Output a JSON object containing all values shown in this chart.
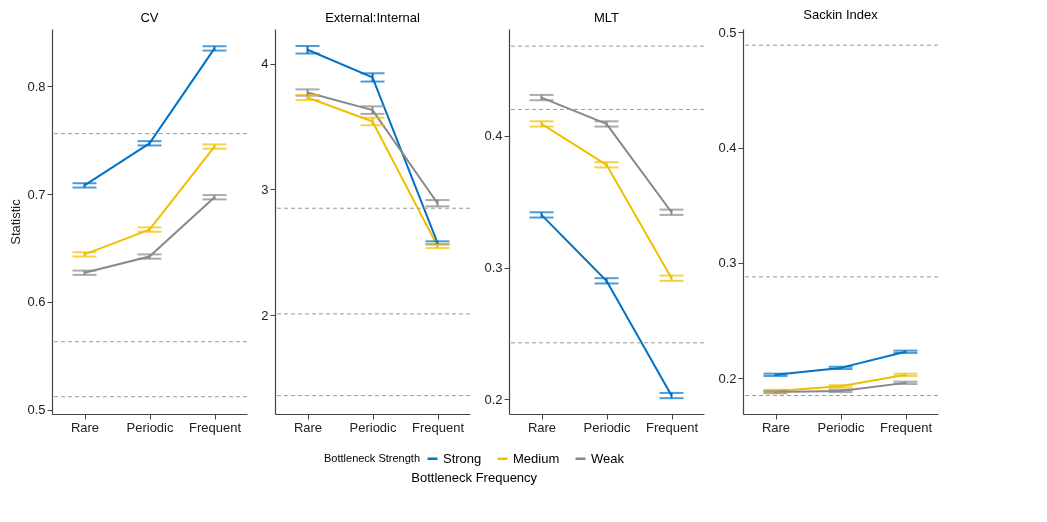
{
  "chart_data": [
    {
      "type": "line",
      "title": "CV",
      "ylabel": "Statistic",
      "legend_title": "Bottleneck Strength",
      "legend": "bottom",
      "categories": [
        "Rare",
        "Periodic",
        "Frequent"
      ],
      "ylim": [
        0.496,
        0.853
      ],
      "yticks": [
        0.5,
        0.6,
        0.7,
        0.8
      ],
      "series": [
        {
          "name": "Strong",
          "color": "#0072c6",
          "values": [
            0.708,
            0.747,
            0.835
          ],
          "errors": [
            0.002,
            0.002,
            0.002
          ]
        },
        {
          "name": "Medium",
          "color": "#efc000",
          "values": [
            0.644,
            0.667,
            0.744
          ],
          "errors": [
            0.002,
            0.002,
            0.002
          ]
        },
        {
          "name": "Weak",
          "color": "#888888",
          "values": [
            0.627,
            0.642,
            0.697
          ],
          "errors": [
            0.002,
            0.002,
            0.002
          ]
        }
      ],
      "ref_lines": [
        {
          "axis": "y",
          "value": 0.756,
          "line_style": "dashed",
          "color": "#999999"
        },
        {
          "axis": "y",
          "value": 0.563,
          "line_style": "dashed",
          "color": "#999999"
        },
        {
          "axis": "y",
          "value": 0.512,
          "line_style": "dashed",
          "color": "#999999"
        }
      ]
    },
    {
      "type": "line",
      "title": "External:Internal",
      "xlabel": "Bottleneck Frequency",
      "categories": [
        "Rare",
        "Periodic",
        "Frequent"
      ],
      "ylim": [
        1.214,
        4.275
      ],
      "yticks": [
        2,
        3,
        4
      ],
      "series": [
        {
          "name": "Strong",
          "color": "#0072c6",
          "values": [
            4.11,
            3.89,
            2.575
          ],
          "errors": [
            0.03,
            0.033,
            0.012
          ]
        },
        {
          "name": "Medium",
          "color": "#efc000",
          "values": [
            3.73,
            3.54,
            2.55
          ],
          "errors": [
            0.02,
            0.03,
            0.017
          ]
        },
        {
          "name": "Weak",
          "color": "#888888",
          "values": [
            3.77,
            3.63,
            2.89
          ],
          "errors": [
            0.025,
            0.03,
            0.025
          ]
        }
      ],
      "ref_lines": [
        {
          "axis": "y",
          "value": 2.85,
          "line_style": "dashed",
          "color": "#999999"
        },
        {
          "axis": "y",
          "value": 2.01,
          "line_style": "dashed",
          "color": "#999999"
        },
        {
          "axis": "y",
          "value": 1.36,
          "line_style": "dashed",
          "color": "#999999"
        }
      ]
    },
    {
      "type": "line",
      "title": "MLT",
      "categories": [
        "Rare",
        "Periodic",
        "Frequent"
      ],
      "ylim": [
        0.189,
        0.481
      ],
      "yticks": [
        0.2,
        0.3,
        0.4
      ],
      "series": [
        {
          "name": "Strong",
          "color": "#0072c6",
          "values": [
            0.34,
            0.29,
            0.203
          ],
          "errors": [
            0.002,
            0.002,
            0.002
          ]
        },
        {
          "name": "Medium",
          "color": "#efc000",
          "values": [
            0.409,
            0.378,
            0.292
          ],
          "errors": [
            0.002,
            0.002,
            0.002
          ]
        },
        {
          "name": "Weak",
          "color": "#888888",
          "values": [
            0.429,
            0.409,
            0.342
          ],
          "errors": [
            0.002,
            0.002,
            0.002
          ]
        }
      ],
      "ref_lines": [
        {
          "axis": "y",
          "value": 0.468,
          "line_style": "dashed",
          "color": "#999999"
        },
        {
          "axis": "y",
          "value": 0.42,
          "line_style": "dashed",
          "color": "#999999"
        },
        {
          "axis": "y",
          "value": 0.243,
          "line_style": "dashed",
          "color": "#999999"
        }
      ]
    },
    {
      "type": "line",
      "title": "Sackin Index",
      "categories": [
        "Rare",
        "Periodic",
        "Frequent"
      ],
      "ylim": [
        0.169,
        0.503
      ],
      "yticks": [
        0.2,
        0.3,
        0.4,
        0.5
      ],
      "series": [
        {
          "name": "Strong",
          "color": "#0072c6",
          "values": [
            0.203,
            0.209,
            0.223
          ],
          "errors": [
            0.001,
            0.001,
            0.001
          ]
        },
        {
          "name": "Medium",
          "color": "#efc000",
          "values": [
            0.189,
            0.193,
            0.203
          ],
          "errors": [
            0.001,
            0.001,
            0.001
          ]
        },
        {
          "name": "Weak",
          "color": "#888888",
          "values": [
            0.188,
            0.189,
            0.196
          ],
          "errors": [
            0.001,
            0.001,
            0.001
          ]
        }
      ],
      "ref_lines": [
        {
          "axis": "y",
          "value": 0.489,
          "line_style": "dashed",
          "color": "#999999"
        },
        {
          "axis": "y",
          "value": 0.288,
          "line_style": "dashed",
          "color": "#999999"
        },
        {
          "axis": "y",
          "value": 0.185,
          "line_style": "dashed",
          "color": "#999999"
        }
      ]
    }
  ]
}
